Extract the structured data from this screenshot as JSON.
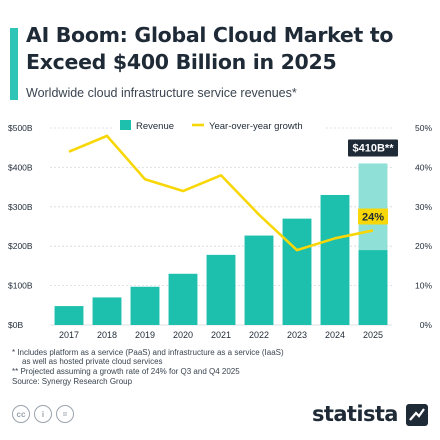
{
  "header": {
    "title": "AI Boom: Global Cloud Market to Exceed $400 Billion in 2025",
    "subtitle": "Worldwide cloud infrastructure service revenues*"
  },
  "chart_data": {
    "type": "bar",
    "categories": [
      "2017",
      "2018",
      "2019",
      "2020",
      "2021",
      "2022",
      "2023",
      "2024",
      "2025"
    ],
    "series": [
      {
        "name": "Revenue",
        "type": "bar",
        "axis": "left",
        "values": [
          48,
          70,
          97,
          130,
          178,
          227,
          270,
          330,
          410
        ],
        "projected_last_value": 190
      },
      {
        "name": "Year-over-year growth",
        "type": "line",
        "axis": "right",
        "values": [
          44,
          48,
          37,
          34,
          38,
          28,
          19,
          22,
          24
        ]
      }
    ],
    "ylim_left": [
      0,
      500
    ],
    "ylim_right": [
      0,
      50
    ],
    "y_left_ticks": [
      {
        "value": 0,
        "label": "$0B"
      },
      {
        "value": 100,
        "label": "$100B"
      },
      {
        "value": 200,
        "label": "$200B"
      },
      {
        "value": 300,
        "label": "$300B"
      },
      {
        "value": 400,
        "label": "$400B"
      },
      {
        "value": 500,
        "label": "$500B"
      }
    ],
    "y_right_ticks": [
      {
        "value": 0,
        "label": "0%"
      },
      {
        "value": 10,
        "label": "10%"
      },
      {
        "value": 20,
        "label": "20%"
      },
      {
        "value": 30,
        "label": "30%"
      },
      {
        "value": 40,
        "label": "40%"
      },
      {
        "value": 50,
        "label": "50%"
      }
    ],
    "annotations": [
      {
        "text": "$410B**",
        "series": 0,
        "index": 8
      },
      {
        "text": "24%",
        "series": 1,
        "index": 8
      }
    ],
    "legend_position": "top-center",
    "grid": true
  },
  "footnotes": [
    "*  Includes platform as a service (PaaS) and infrastructure as a service (IaaS)",
    "as well as hosted private cloud services",
    "** Projected assuming a growth rate of 24% for Q3 and Q4 2025",
    "Source: Synergy Research Group"
  ],
  "footer": {
    "license_icons": [
      "cc",
      "i",
      "="
    ],
    "brand": "statista"
  },
  "colors": {
    "bar": "#1dbfad",
    "bar_projected": "#8fe0d6",
    "line": "#f7d708",
    "text": "#1f2a37",
    "grid": "#d5d9de"
  }
}
